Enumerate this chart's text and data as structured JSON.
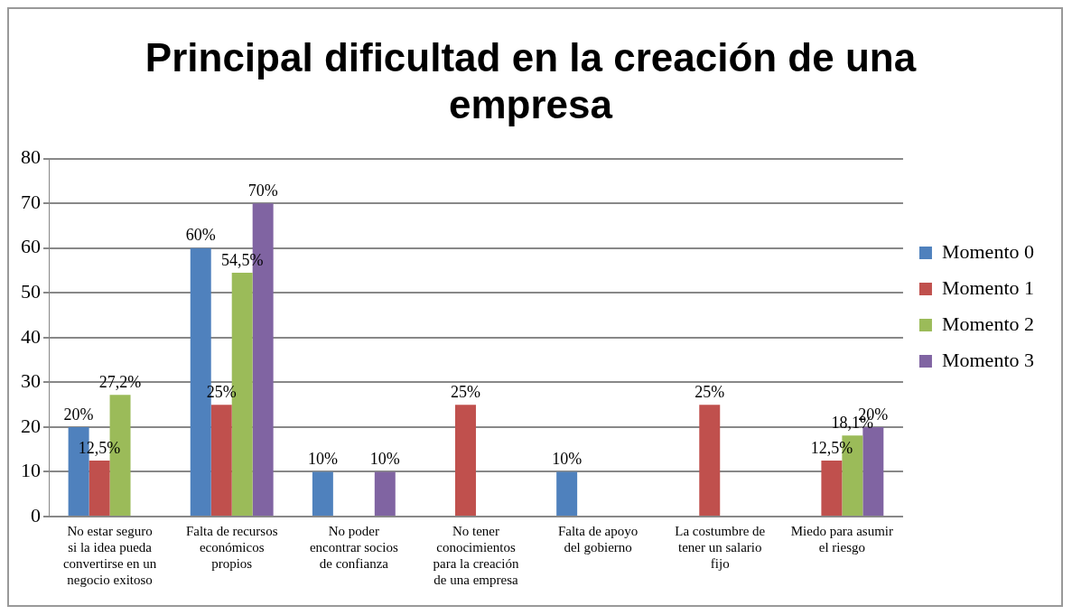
{
  "chart_data": {
    "type": "bar",
    "title": "Principal dificultad en la creación de una empresa",
    "categories": [
      "No estar seguro si la idea pueda convertirse en un negocio exitoso",
      "Falta de recursos económicos propios",
      "No poder encontrar socios de confianza",
      "No tener conocimientos para la creación de una empresa",
      "Falta de apoyo del gobierno",
      "La costumbre de tener un salario fijo",
      "Miedo para asumir el riesgo"
    ],
    "series": [
      {
        "name": "Momento 0",
        "color": "#4f81bd",
        "values": [
          20,
          60,
          10,
          null,
          10,
          null,
          null
        ],
        "value_labels": [
          "20%",
          "60%",
          "10%",
          null,
          "10%",
          null,
          null
        ]
      },
      {
        "name": "Momento 1",
        "color": "#c0504d",
        "values": [
          12.5,
          25,
          null,
          25,
          null,
          25,
          12.5
        ],
        "value_labels": [
          "12,5%",
          "25%",
          null,
          "25%",
          null,
          "25%",
          "12,5%"
        ]
      },
      {
        "name": "Momento 2",
        "color": "#9bbb59",
        "values": [
          27.2,
          54.5,
          null,
          null,
          null,
          null,
          18.1
        ],
        "value_labels": [
          "27,2%",
          "54,5%",
          null,
          null,
          null,
          null,
          "18,1%"
        ]
      },
      {
        "name": "Momento 3",
        "color": "#8064a2",
        "values": [
          null,
          70,
          10,
          null,
          null,
          null,
          20
        ],
        "value_labels": [
          null,
          "70%",
          "10%",
          null,
          null,
          null,
          "20%"
        ]
      }
    ],
    "ylim": [
      0,
      80
    ],
    "yticks": [
      0,
      10,
      20,
      30,
      40,
      50,
      60,
      70,
      80
    ],
    "grid": "y",
    "legend": "right"
  }
}
